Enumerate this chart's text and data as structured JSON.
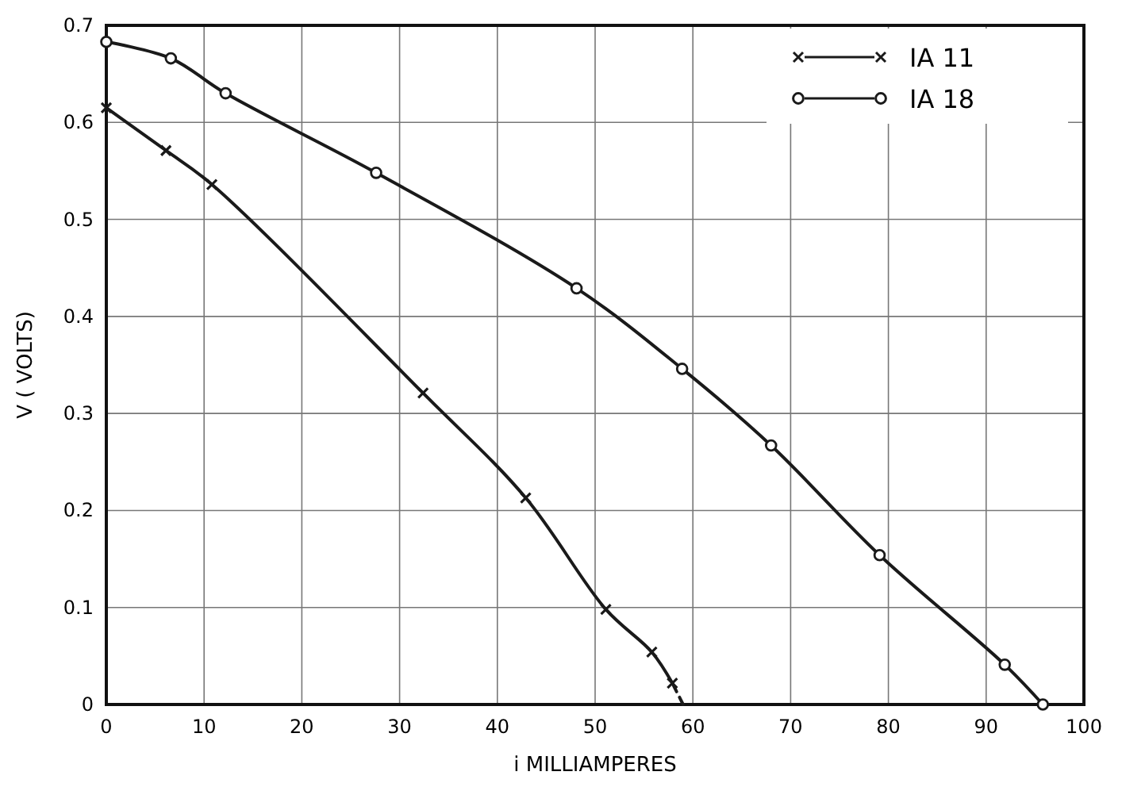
{
  "chart_data": {
    "type": "line",
    "xlabel": "i  MILLIAMPERES",
    "ylabel": "V ( VOLTS)",
    "xlim": [
      0,
      100
    ],
    "ylim": [
      0,
      0.7
    ],
    "xticks": [
      0,
      10,
      20,
      30,
      40,
      50,
      60,
      70,
      80,
      90,
      100
    ],
    "yticks": [
      0,
      0.1,
      0.2,
      0.3,
      0.4,
      0.5,
      0.6,
      0.7
    ],
    "grid": true,
    "legend": "top right",
    "line_style": "solid",
    "series": [
      {
        "name": "IA 11",
        "color": "#1a1a1a",
        "marker": "cross",
        "x": [
          0,
          6.1,
          10.8,
          32.4,
          42.9,
          51.1,
          55.8,
          57.9
        ],
        "values": [
          0.615,
          0.571,
          0.536,
          0.321,
          0.213,
          0.098,
          0.054,
          0.022
        ]
      },
      {
        "name": "IA 18",
        "color": "#1a1a1a",
        "marker": "circle",
        "x": [
          0,
          6.6,
          12.2,
          27.6,
          48.1,
          58.9,
          68.0,
          79.1,
          91.9,
          95.8
        ],
        "values": [
          0.683,
          0.666,
          0.63,
          0.548,
          0.429,
          0.346,
          0.267,
          0.154,
          0.041,
          0
        ]
      },
      {
        "color": "#1a1a1a",
        "marker": "none",
        "line_style": "dashed",
        "x": [
          57.9,
          59
        ],
        "values": [
          0.022,
          0
        ]
      }
    ]
  }
}
